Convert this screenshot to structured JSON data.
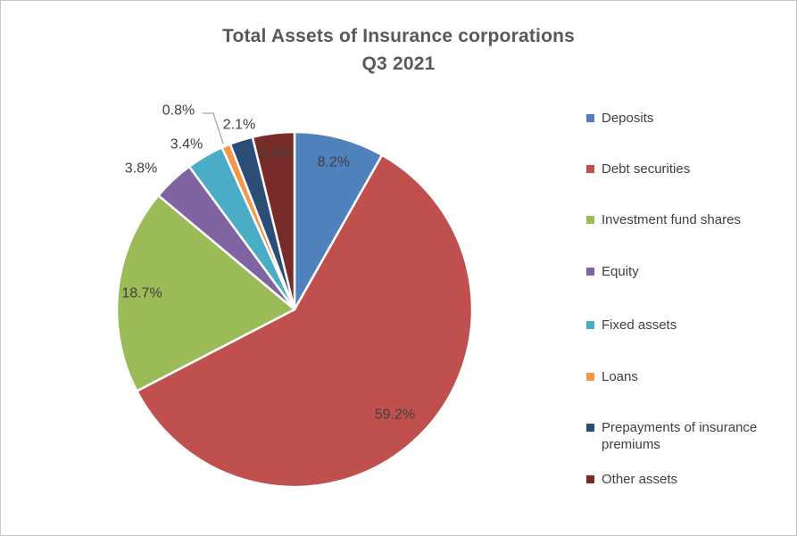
{
  "title": {
    "line1": "Total Assets of Insurance corporations",
    "line2": "Q3 2021"
  },
  "chart_data": {
    "type": "pie",
    "title": "Total Assets of Insurance corporations Q3 2021",
    "unit": "%",
    "start_angle_deg": 0,
    "direction": "clockwise",
    "legend_position": "right",
    "slices": [
      {
        "label": "Deposits",
        "value": 8.2,
        "display": "8.2%",
        "color": "#4F81BD",
        "label_placement": "inside"
      },
      {
        "label": "Debt securities",
        "value": 59.2,
        "display": "59.2%",
        "color": "#C0504D",
        "label_placement": "inside"
      },
      {
        "label": "Investment fund shares",
        "value": 18.7,
        "display": "18.7%",
        "color": "#9BBB59",
        "label_placement": "inside"
      },
      {
        "label": "Equity",
        "value": 3.8,
        "display": "3.8%",
        "color": "#8064A2",
        "label_placement": "outside"
      },
      {
        "label": "Fixed assets",
        "value": 3.4,
        "display": "3.4%",
        "color": "#4BACC6",
        "label_placement": "outside"
      },
      {
        "label": "Loans",
        "value": 0.8,
        "display": "0.8%",
        "color": "#F79646",
        "label_placement": "outside-with-leader"
      },
      {
        "label": "Prepayments of insurance premiums",
        "value": 2.1,
        "display": "2.1%",
        "color": "#2C4D75",
        "label_placement": "outside"
      },
      {
        "label": "Other assets",
        "value": 3.8,
        "display": "3.8%",
        "color": "#772C2A",
        "label_placement": "inside"
      }
    ]
  },
  "colors": {
    "title_text": "#595959",
    "label_text": "#404040",
    "leader_line": "#A6A6A6",
    "slice_border": "#FFFFFF",
    "canvas_border": "#C6C6C6",
    "background": "#FFFFFF"
  }
}
